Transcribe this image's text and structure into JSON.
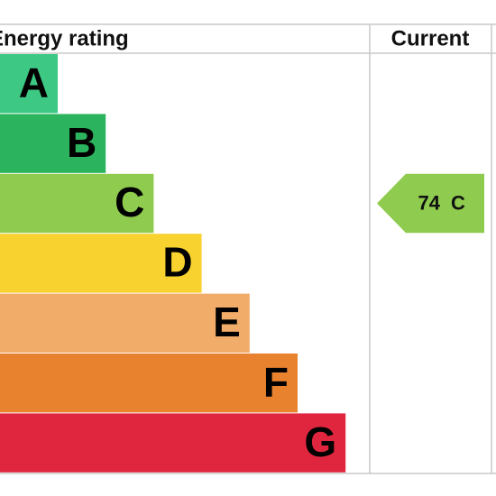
{
  "header": {
    "title": "Energy rating",
    "current": "Current"
  },
  "bands": [
    {
      "letter": "A",
      "color": "#3dc983"
    },
    {
      "letter": "B",
      "color": "#2bb35d"
    },
    {
      "letter": "C",
      "color": "#8fcb4e"
    },
    {
      "letter": "D",
      "color": "#f8d22e"
    },
    {
      "letter": "E",
      "color": "#f2ac6a"
    },
    {
      "letter": "F",
      "color": "#e8822f"
    },
    {
      "letter": "G",
      "color": "#e0263e"
    }
  ],
  "current": {
    "score": 74,
    "band": "C",
    "color": "#8fcb4e"
  }
}
